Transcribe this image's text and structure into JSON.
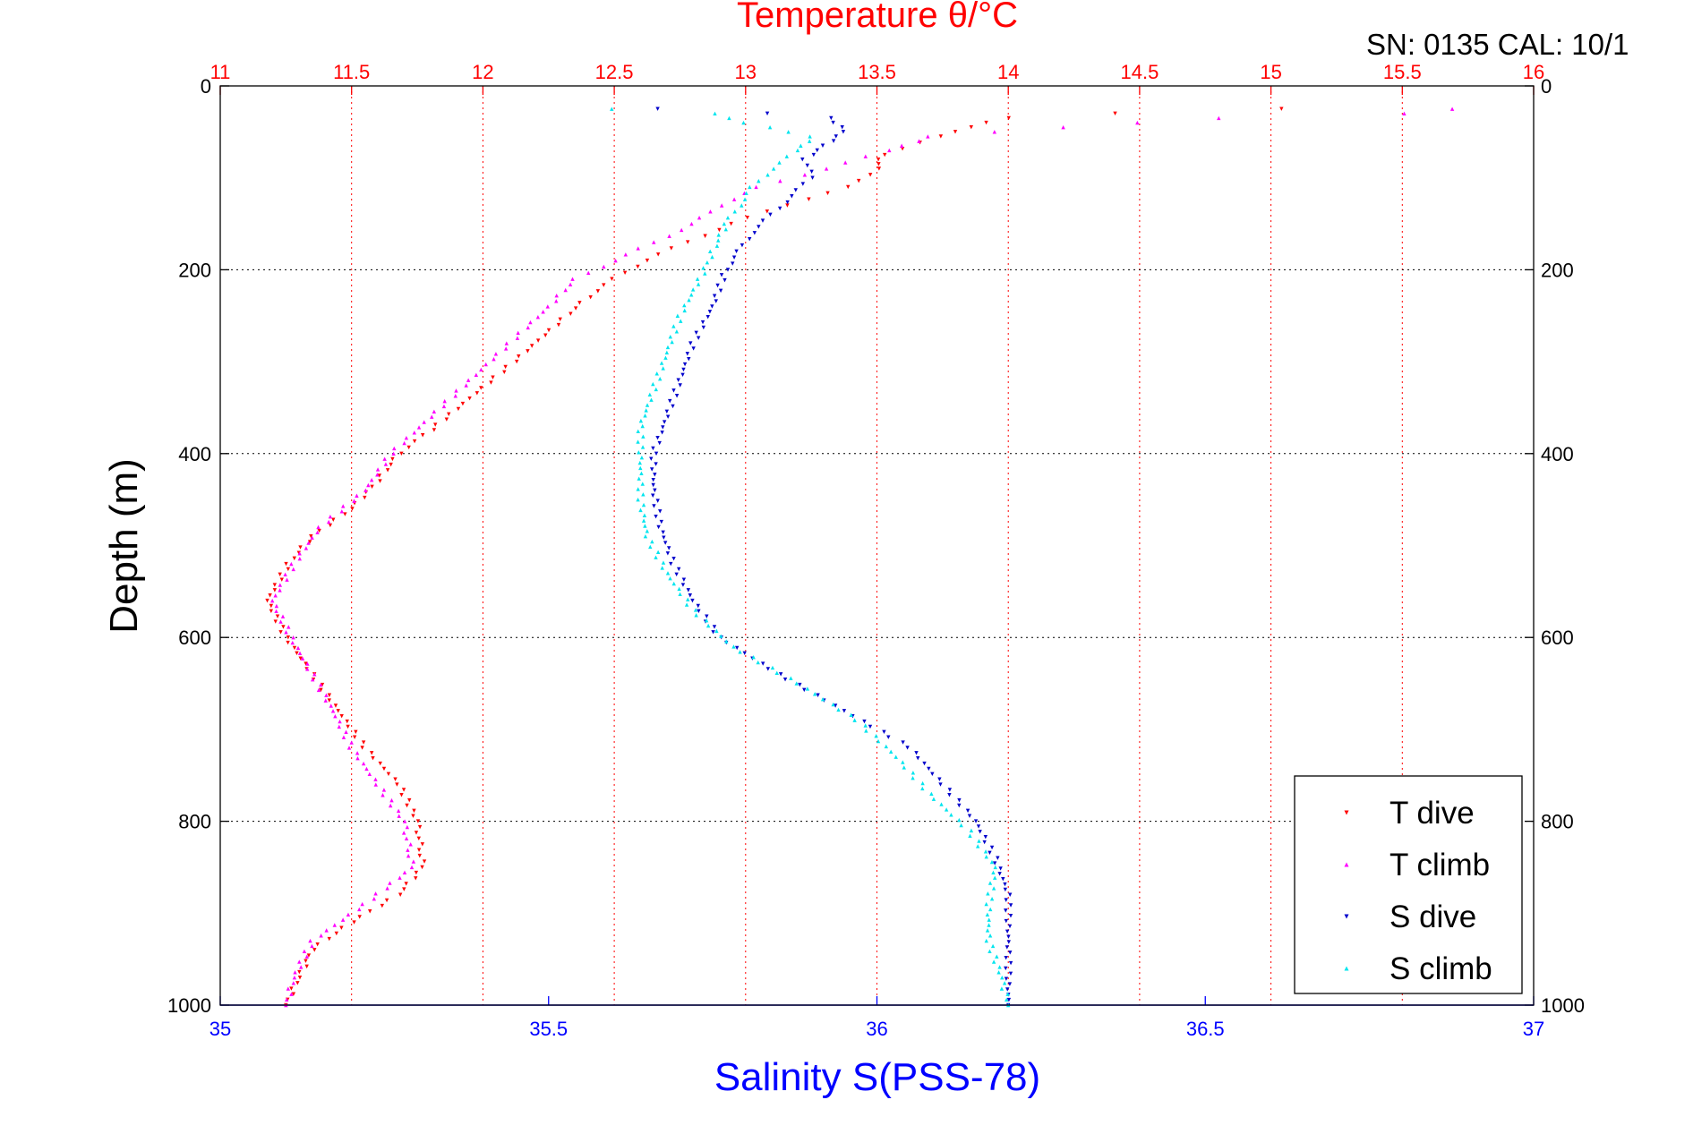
{
  "chart_data": {
    "type": "scatter",
    "title": "Temperature θ/°C",
    "annotation": "SN: 0135  CAL: 10/1",
    "ylabel": "Depth (m)",
    "xlabel": "Salinity S(PSS-78)",
    "axes": {
      "depth": {
        "lim": [
          0,
          1000
        ],
        "reversed": true,
        "ticks": [
          "0",
          "200",
          "400",
          "600",
          "800",
          "1000"
        ],
        "tick_values": [
          0,
          200,
          400,
          600,
          800,
          1000
        ],
        "grid": true
      },
      "temperature": {
        "position": "top",
        "color": "#ff0000",
        "lim": [
          11,
          16
        ],
        "ticks": [
          "11",
          "11.5",
          "12",
          "12.5",
          "13",
          "13.5",
          "14",
          "14.5",
          "15",
          "15.5",
          "16"
        ],
        "tick_values": [
          11,
          11.5,
          12,
          12.5,
          13,
          13.5,
          14,
          14.5,
          15,
          15.5,
          16
        ],
        "grid": true
      },
      "salinity": {
        "position": "bottom",
        "color": "#0000ff",
        "lim": [
          35,
          37
        ],
        "ticks": [
          "35",
          "35.5",
          "36",
          "36.5",
          "37"
        ],
        "tick_values": [
          35,
          35.5,
          36,
          36.5,
          37
        ]
      }
    },
    "legend": {
      "placement": "bottom-right",
      "entries": [
        {
          "label": "T dive",
          "color": "#ff0000",
          "marker": "triangle-down"
        },
        {
          "label": "T climb",
          "color": "#ff00ff",
          "marker": "triangle-up"
        },
        {
          "label": "S dive",
          "color": "#0000cc",
          "marker": "triangle-down"
        },
        {
          "label": "S climb",
          "color": "#00e5ee",
          "marker": "triangle-up"
        }
      ]
    },
    "series": [
      {
        "name": "T dive",
        "axis": "temperature",
        "color": "#ff0000",
        "marker": "triangle-down",
        "points": [
          {
            "depth": 25,
            "value": 15.05
          },
          {
            "depth": 30,
            "value": 14.4
          },
          {
            "depth": 35,
            "value": 14.0
          },
          {
            "depth": 45,
            "value": 13.85
          },
          {
            "depth": 55,
            "value": 13.75
          },
          {
            "depth": 75,
            "value": 13.52
          },
          {
            "depth": 90,
            "value": 13.5
          },
          {
            "depth": 110,
            "value": 13.4
          },
          {
            "depth": 130,
            "value": 13.15
          },
          {
            "depth": 150,
            "value": 12.95
          },
          {
            "depth": 170,
            "value": 12.78
          },
          {
            "depth": 190,
            "value": 12.62
          },
          {
            "depth": 210,
            "value": 12.5
          },
          {
            "depth": 230,
            "value": 12.4
          },
          {
            "depth": 260,
            "value": 12.28
          },
          {
            "depth": 300,
            "value": 12.12
          },
          {
            "depth": 340,
            "value": 11.95
          },
          {
            "depth": 380,
            "value": 11.78
          },
          {
            "depth": 400,
            "value": 11.68
          },
          {
            "depth": 430,
            "value": 11.6
          },
          {
            "depth": 460,
            "value": 11.5
          },
          {
            "depth": 490,
            "value": 11.35
          },
          {
            "depth": 520,
            "value": 11.26
          },
          {
            "depth": 560,
            "value": 11.18
          },
          {
            "depth": 600,
            "value": 11.25
          },
          {
            "depth": 640,
            "value": 11.35
          },
          {
            "depth": 680,
            "value": 11.45
          },
          {
            "depth": 720,
            "value": 11.55
          },
          {
            "depth": 760,
            "value": 11.68
          },
          {
            "depth": 800,
            "value": 11.75
          },
          {
            "depth": 850,
            "value": 11.77
          },
          {
            "depth": 880,
            "value": 11.68
          },
          {
            "depth": 910,
            "value": 11.5
          },
          {
            "depth": 940,
            "value": 11.35
          },
          {
            "depth": 970,
            "value": 11.3
          },
          {
            "depth": 1000,
            "value": 11.25
          }
        ]
      },
      {
        "name": "T climb",
        "axis": "temperature",
        "color": "#ff00ff",
        "marker": "triangle-up",
        "points": [
          {
            "depth": 25,
            "value": 15.7
          },
          {
            "depth": 30,
            "value": 15.5
          },
          {
            "depth": 35,
            "value": 14.8
          },
          {
            "depth": 45,
            "value": 14.2
          },
          {
            "depth": 55,
            "value": 13.7
          },
          {
            "depth": 70,
            "value": 13.55
          },
          {
            "depth": 90,
            "value": 13.3
          },
          {
            "depth": 110,
            "value": 13.05
          },
          {
            "depth": 130,
            "value": 12.9
          },
          {
            "depth": 150,
            "value": 12.8
          },
          {
            "depth": 170,
            "value": 12.65
          },
          {
            "depth": 190,
            "value": 12.5
          },
          {
            "depth": 210,
            "value": 12.35
          },
          {
            "depth": 240,
            "value": 12.25
          },
          {
            "depth": 280,
            "value": 12.1
          },
          {
            "depth": 320,
            "value": 11.95
          },
          {
            "depth": 360,
            "value": 11.8
          },
          {
            "depth": 400,
            "value": 11.65
          },
          {
            "depth": 440,
            "value": 11.55
          },
          {
            "depth": 480,
            "value": 11.38
          },
          {
            "depth": 520,
            "value": 11.28
          },
          {
            "depth": 560,
            "value": 11.2
          },
          {
            "depth": 600,
            "value": 11.27
          },
          {
            "depth": 640,
            "value": 11.35
          },
          {
            "depth": 680,
            "value": 11.43
          },
          {
            "depth": 720,
            "value": 11.5
          },
          {
            "depth": 760,
            "value": 11.6
          },
          {
            "depth": 800,
            "value": 11.7
          },
          {
            "depth": 850,
            "value": 11.73
          },
          {
            "depth": 890,
            "value": 11.55
          },
          {
            "depth": 930,
            "value": 11.35
          },
          {
            "depth": 970,
            "value": 11.28
          },
          {
            "depth": 1000,
            "value": 11.25
          }
        ]
      },
      {
        "name": "S dive",
        "axis": "salinity",
        "color": "#0000cc",
        "marker": "triangle-down",
        "points": [
          {
            "depth": 25,
            "value": 35.67
          },
          {
            "depth": 30,
            "value": 35.83
          },
          {
            "depth": 35,
            "value": 35.93
          },
          {
            "depth": 50,
            "value": 35.95
          },
          {
            "depth": 65,
            "value": 35.92
          },
          {
            "depth": 80,
            "value": 35.89
          },
          {
            "depth": 100,
            "value": 35.9
          },
          {
            "depth": 120,
            "value": 35.87
          },
          {
            "depth": 140,
            "value": 35.84
          },
          {
            "depth": 160,
            "value": 35.81
          },
          {
            "depth": 180,
            "value": 35.79
          },
          {
            "depth": 200,
            "value": 35.77
          },
          {
            "depth": 240,
            "value": 35.75
          },
          {
            "depth": 280,
            "value": 35.72
          },
          {
            "depth": 320,
            "value": 35.7
          },
          {
            "depth": 360,
            "value": 35.68
          },
          {
            "depth": 400,
            "value": 35.66
          },
          {
            "depth": 440,
            "value": 35.66
          },
          {
            "depth": 480,
            "value": 35.67
          },
          {
            "depth": 520,
            "value": 35.69
          },
          {
            "depth": 560,
            "value": 35.72
          },
          {
            "depth": 600,
            "value": 35.76
          },
          {
            "depth": 640,
            "value": 35.85
          },
          {
            "depth": 680,
            "value": 35.95
          },
          {
            "depth": 720,
            "value": 36.05
          },
          {
            "depth": 760,
            "value": 36.1
          },
          {
            "depth": 800,
            "value": 36.15
          },
          {
            "depth": 840,
            "value": 36.18
          },
          {
            "depth": 880,
            "value": 36.2
          },
          {
            "depth": 920,
            "value": 36.2
          },
          {
            "depth": 960,
            "value": 36.2
          },
          {
            "depth": 1000,
            "value": 36.2
          }
        ]
      },
      {
        "name": "S climb",
        "axis": "salinity",
        "color": "#00e5ee",
        "marker": "triangle-up",
        "points": [
          {
            "depth": 25,
            "value": 35.6
          },
          {
            "depth": 30,
            "value": 35.75
          },
          {
            "depth": 40,
            "value": 35.8
          },
          {
            "depth": 55,
            "value": 35.9
          },
          {
            "depth": 70,
            "value": 35.88
          },
          {
            "depth": 90,
            "value": 35.84
          },
          {
            "depth": 110,
            "value": 35.81
          },
          {
            "depth": 130,
            "value": 35.79
          },
          {
            "depth": 150,
            "value": 35.77
          },
          {
            "depth": 180,
            "value": 35.75
          },
          {
            "depth": 210,
            "value": 35.73
          },
          {
            "depth": 250,
            "value": 35.7
          },
          {
            "depth": 290,
            "value": 35.68
          },
          {
            "depth": 330,
            "value": 35.66
          },
          {
            "depth": 370,
            "value": 35.64
          },
          {
            "depth": 410,
            "value": 35.64
          },
          {
            "depth": 450,
            "value": 35.64
          },
          {
            "depth": 490,
            "value": 35.65
          },
          {
            "depth": 530,
            "value": 35.68
          },
          {
            "depth": 570,
            "value": 35.72
          },
          {
            "depth": 610,
            "value": 35.78
          },
          {
            "depth": 650,
            "value": 35.88
          },
          {
            "depth": 690,
            "value": 35.97
          },
          {
            "depth": 730,
            "value": 36.03
          },
          {
            "depth": 770,
            "value": 36.08
          },
          {
            "depth": 810,
            "value": 36.14
          },
          {
            "depth": 850,
            "value": 36.18
          },
          {
            "depth": 890,
            "value": 36.17
          },
          {
            "depth": 930,
            "value": 36.17
          },
          {
            "depth": 970,
            "value": 36.19
          },
          {
            "depth": 1000,
            "value": 36.2
          }
        ]
      }
    ]
  }
}
